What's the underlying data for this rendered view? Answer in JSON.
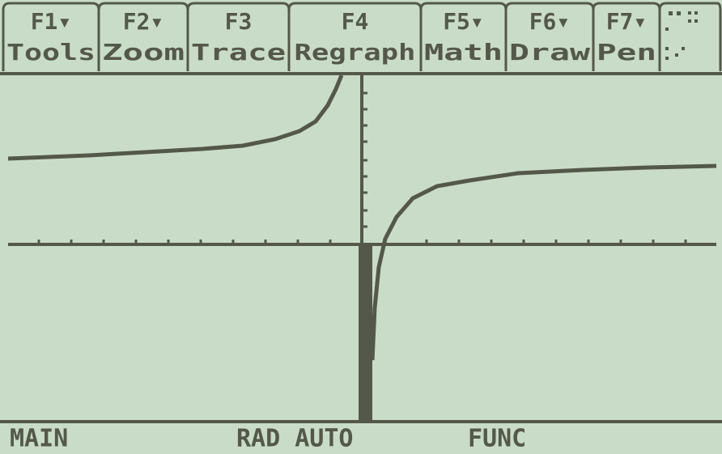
{
  "toolbar": [
    {
      "key": "F1▾",
      "label": "Tools"
    },
    {
      "key": "F2▾",
      "label": "Zoom"
    },
    {
      "key": "F3",
      "label": "Trace"
    },
    {
      "key": "F4",
      "label": "Regraph"
    },
    {
      "key": "F5▾",
      "label": "Math"
    },
    {
      "key": "F6▾",
      "label": "Draw"
    },
    {
      "key": "F7▾",
      "label": "Pen"
    }
  ],
  "status": [
    "MAIN",
    "RAD AUTO",
    "FUNC"
  ]
}
